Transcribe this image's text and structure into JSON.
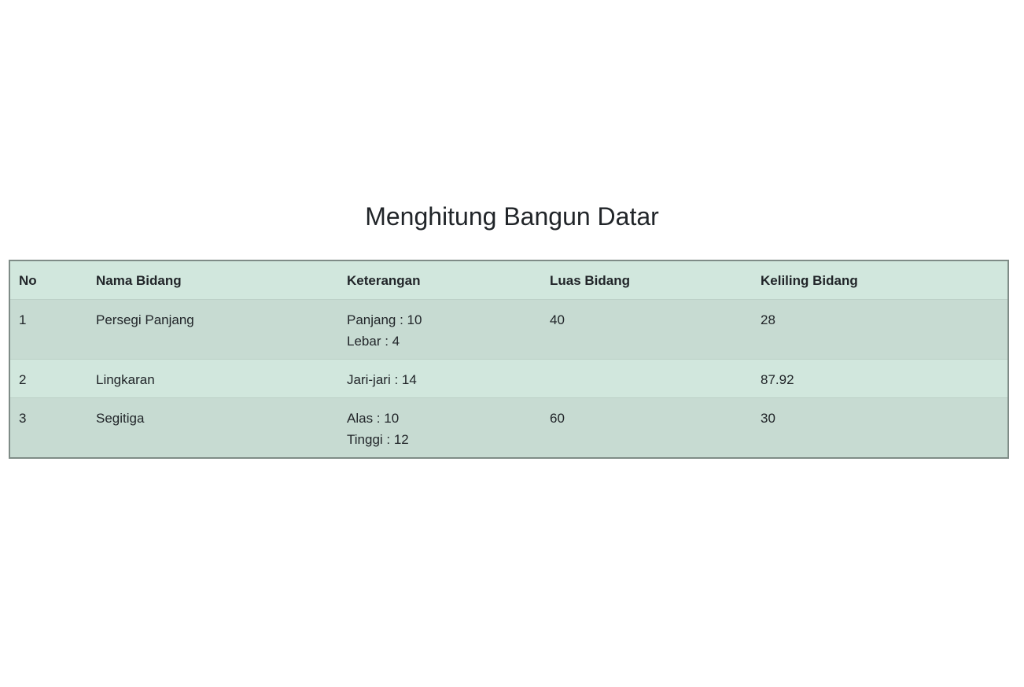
{
  "page": {
    "title": "Menghitung Bangun Datar"
  },
  "table": {
    "headers": {
      "no": "No",
      "nama": "Nama Bidang",
      "keterangan": "Keterangan",
      "luas": "Luas Bidang",
      "keliling": "Keliling Bidang"
    },
    "rows": [
      {
        "no": "1",
        "nama": "Persegi Panjang",
        "keterangan": [
          "Panjang : 10",
          "Lebar : 4"
        ],
        "luas": "40",
        "keliling": "28"
      },
      {
        "no": "2",
        "nama": "Lingkaran",
        "keterangan": [
          "Jari-jari : 14"
        ],
        "luas": "",
        "keliling": "87.92"
      },
      {
        "no": "3",
        "nama": "Segitiga",
        "keterangan": [
          "Alas : 10",
          "Tinggi : 12"
        ],
        "luas": "60",
        "keliling": "30"
      }
    ]
  },
  "colors": {
    "row_light": "#d1e7dd",
    "row_dark": "#c7dbd2",
    "border": "#7f8c87"
  }
}
